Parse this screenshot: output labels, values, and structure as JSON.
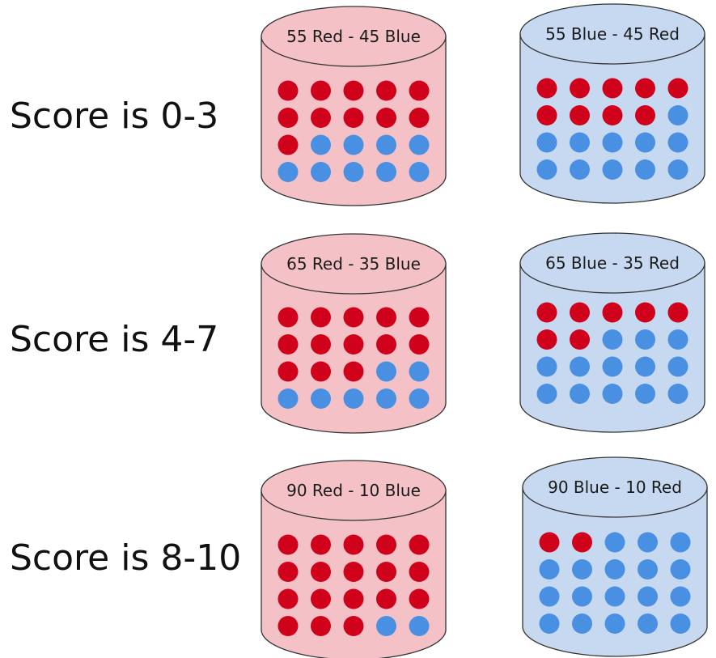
{
  "colors": {
    "red_ball": "#d0021b",
    "blue_ball": "#4a90e2",
    "red_urn_fill": "#f4c2c6",
    "blue_urn_fill": "#c6d9f0",
    "outline": "#333333"
  },
  "rows": [
    {
      "label": "Score is 0-3",
      "urns": [
        {
          "label": "55 Red - 45 Blue",
          "theme": "red",
          "red_balls": 11,
          "blue_balls": 9
        },
        {
          "label": "55 Blue - 45 Red",
          "theme": "blue",
          "red_balls": 9,
          "blue_balls": 11
        }
      ]
    },
    {
      "label": "Score is 4-7",
      "urns": [
        {
          "label": "65 Red - 35 Blue",
          "theme": "red",
          "red_balls": 13,
          "blue_balls": 7
        },
        {
          "label": "65 Blue - 35 Red",
          "theme": "blue",
          "red_balls": 7,
          "blue_balls": 13
        }
      ]
    },
    {
      "label": "Score is 8-10",
      "urns": [
        {
          "label": "90 Red - 10 Blue",
          "theme": "red",
          "red_balls": 18,
          "blue_balls": 2
        },
        {
          "label": "90 Blue - 10 Red",
          "theme": "blue",
          "red_balls": 2,
          "blue_balls": 18
        }
      ]
    }
  ]
}
